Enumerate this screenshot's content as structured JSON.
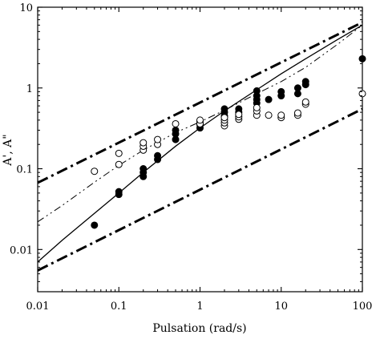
{
  "chart_data": {
    "type": "scatter",
    "title": "",
    "xlabel": "Pulsation (rad/s)",
    "ylabel": "A', A\"",
    "xscale": "log",
    "yscale": "log",
    "xlim": [
      0.01,
      100
    ],
    "ylim": [
      0.003,
      10
    ],
    "grid": false,
    "x_ticks": [
      {
        "value": 0.01,
        "label": "0.01"
      },
      {
        "value": 0.1,
        "label": "0.1"
      },
      {
        "value": 1,
        "label": "1"
      },
      {
        "value": 10,
        "label": "10"
      },
      {
        "value": 100,
        "label": "100"
      }
    ],
    "y_ticks": [
      {
        "value": 0.01,
        "label": "0.01"
      },
      {
        "value": 0.1,
        "label": "0.1"
      },
      {
        "value": 1,
        "label": "1"
      },
      {
        "value": 10,
        "label": "10"
      }
    ],
    "series": [
      {
        "kind": "points",
        "marker": "filled-circle",
        "x": [
          0.05,
          0.1,
          0.1,
          0.2,
          0.2,
          0.2,
          0.3,
          0.3,
          0.5,
          0.5,
          0.5,
          1,
          1,
          1,
          2,
          2,
          2,
          3,
          3,
          5,
          5,
          5,
          5,
          7,
          10,
          10,
          16,
          16,
          20,
          20,
          100
        ],
        "y": [
          0.02,
          0.048,
          0.052,
          0.08,
          0.09,
          0.1,
          0.13,
          0.145,
          0.23,
          0.27,
          0.3,
          0.32,
          0.35,
          0.38,
          0.45,
          0.5,
          0.55,
          0.5,
          0.55,
          0.65,
          0.72,
          0.8,
          0.92,
          0.72,
          0.8,
          0.9,
          0.85,
          1.0,
          1.1,
          1.2,
          2.3
        ]
      },
      {
        "kind": "points",
        "marker": "open-circle",
        "x": [
          0.05,
          0.1,
          0.1,
          0.2,
          0.2,
          0.2,
          0.3,
          0.3,
          0.5,
          1,
          1,
          2,
          2,
          2,
          2,
          3,
          3,
          3,
          5,
          5,
          5,
          7,
          10,
          10,
          16,
          16,
          20,
          20,
          100
        ],
        "y": [
          0.093,
          0.113,
          0.155,
          0.17,
          0.19,
          0.21,
          0.2,
          0.23,
          0.36,
          0.36,
          0.4,
          0.34,
          0.37,
          0.4,
          0.43,
          0.41,
          0.44,
          0.47,
          0.46,
          0.52,
          0.57,
          0.46,
          0.43,
          0.46,
          0.46,
          0.49,
          0.63,
          0.67,
          0.85
        ]
      },
      {
        "kind": "line",
        "style": "solid",
        "x": [
          0.01,
          0.02,
          0.05,
          0.1,
          0.2,
          0.5,
          1,
          2,
          5,
          10,
          20,
          50,
          100
        ],
        "y": [
          0.007,
          0.013,
          0.028,
          0.05,
          0.09,
          0.19,
          0.32,
          0.52,
          0.95,
          1.5,
          2.3,
          4.0,
          6.0
        ]
      },
      {
        "kind": "line",
        "style": "dash-dot-dot",
        "x": [
          0.01,
          0.02,
          0.05,
          0.1,
          0.2,
          0.5,
          1,
          2,
          5,
          10,
          20,
          50,
          100
        ],
        "y": [
          0.022,
          0.035,
          0.068,
          0.11,
          0.17,
          0.28,
          0.38,
          0.53,
          0.85,
          1.2,
          1.8,
          3.5,
          6.0
        ]
      },
      {
        "kind": "line",
        "style": "heavy-dash-dot",
        "x": [
          0.01,
          100
        ],
        "y": [
          0.067,
          6.5
        ]
      },
      {
        "kind": "line",
        "style": "heavy-dash-dot",
        "x": [
          0.01,
          100
        ],
        "y": [
          0.0055,
          0.55
        ]
      }
    ]
  }
}
